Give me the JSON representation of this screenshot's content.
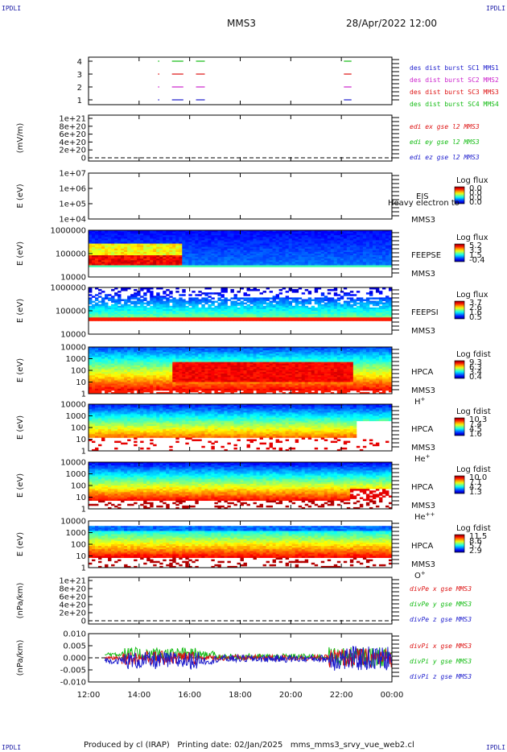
{
  "corner_label": "IPDLI",
  "header": {
    "mission": "MMS3",
    "datetime": "28/Apr/2022 12:00"
  },
  "footer": "Produced by cl (IRAP)   Printing date: 02/Jan/2025   mms_mms3_srvy_vue_web2.cl",
  "time_axis": {
    "ticks": [
      "12:00",
      "14:00",
      "16:00",
      "18:00",
      "20:00",
      "22:00",
      "00:00"
    ],
    "range_hours": [
      12,
      24
    ]
  },
  "chart_data": [
    {
      "type": "timeline",
      "id": "burst",
      "yticks": [
        "4",
        "3",
        "2",
        "1"
      ],
      "legend": [
        {
          "text": "des dist burst SC1 MMS1",
          "color": "#1a1acc"
        },
        {
          "text": "des dist burst SC2 MMS2",
          "color": "#cc22cc"
        },
        {
          "text": "des dist burst SC3 MMS3",
          "color": "#dd1111"
        },
        {
          "text": "des dist burst SC4 MMS4",
          "color": "#11bb11"
        }
      ],
      "intervals": [
        [
          14.75,
          14.8
        ],
        [
          15.3,
          15.75
        ],
        [
          16.25,
          16.6
        ],
        [
          22.1,
          22.4
        ]
      ]
    },
    {
      "type": "line",
      "id": "edi",
      "ylabel": "(mV/m)",
      "yticks": [
        "1e+21",
        "8e+20",
        "6e+20",
        "4e+20",
        "2e+20",
        "0"
      ],
      "legend": [
        {
          "text": "edi ex gse l2 MMS3",
          "color": "#dd1111"
        },
        {
          "text": "edi ey gse l2 MMS3",
          "color": "#11bb11"
        },
        {
          "text": "edi ez gse l2 MMS3",
          "color": "#1a1acc"
        }
      ]
    },
    {
      "type": "heatmap",
      "id": "eis",
      "ylabel": "E (eV)",
      "yticks": [
        "1e+07",
        "1e+06",
        "1e+05",
        "1e+04"
      ],
      "instrument": "EIS",
      "sc": "MMS3",
      "species": "",
      "overlay": "Heavy electron to",
      "cbar_title": "Log flux",
      "cbar_ticks": [
        "0.0",
        "0.0",
        "0.0",
        "0.0"
      ]
    },
    {
      "type": "heatmap",
      "id": "feepse",
      "ylabel": "E (eV)",
      "yticks": [
        "1000000",
        "100000",
        "10000"
      ],
      "instrument": "FEEPSE",
      "sc": "MMS3",
      "species": "",
      "cbar_title": "Log flux",
      "cbar_ticks": [
        "5.2",
        "3.3",
        "1.5",
        "-0.4"
      ]
    },
    {
      "type": "heatmap",
      "id": "feepsi",
      "ylabel": "E (eV)",
      "yticks": [
        "1000000",
        "100000",
        "10000"
      ],
      "instrument": "FEEPSI",
      "sc": "MMS3",
      "species": "",
      "cbar_title": "Log flux",
      "cbar_ticks": [
        "3.7",
        "2.6",
        "1.6",
        "0.5"
      ]
    },
    {
      "type": "heatmap",
      "id": "hpca_h",
      "ylabel": "E (eV)",
      "yticks": [
        "10000",
        "1000",
        "100",
        "10",
        "1"
      ],
      "instrument": "HPCA",
      "sc": "MMS3",
      "species": "H",
      "species_sup": "+",
      "cbar_title": "Log fdist",
      "cbar_ticks": [
        "9.3",
        "6.3",
        "3.4",
        "0.4"
      ]
    },
    {
      "type": "heatmap",
      "id": "hpca_he",
      "ylabel": "E (eV)",
      "yticks": [
        "10000",
        "1000",
        "100",
        "10",
        "1"
      ],
      "instrument": "HPCA",
      "sc": "MMS3",
      "species": "He",
      "species_sup": "+",
      "cbar_title": "Log fdist",
      "cbar_ticks": [
        "10.3",
        "7.4",
        "4.5",
        "1.6"
      ]
    },
    {
      "type": "heatmap",
      "id": "hpca_hepp",
      "ylabel": "E (eV)",
      "yticks": [
        "10000",
        "1000",
        "100",
        "10",
        "1"
      ],
      "instrument": "HPCA",
      "sc": "MMS3",
      "species": "He",
      "species_sup": "++",
      "cbar_title": "Log fdist",
      "cbar_ticks": [
        "10.0",
        "7.1",
        "4.2",
        "1.3"
      ]
    },
    {
      "type": "heatmap",
      "id": "hpca_o",
      "ylabel": "E (eV)",
      "yticks": [
        "10000",
        "1000",
        "100",
        "10",
        "1"
      ],
      "instrument": "HPCA",
      "sc": "MMS3",
      "species": "O",
      "species_sup": "+",
      "cbar_title": "Log fdist",
      "cbar_ticks": [
        "11.5",
        "8.6",
        "5.7",
        "2.9"
      ]
    },
    {
      "type": "line",
      "id": "divpe",
      "ylabel": "(nPa/km)",
      "yticks": [
        "1e+21",
        "8e+20",
        "6e+20",
        "4e+20",
        "2e+20",
        "0"
      ],
      "legend": [
        {
          "text": "divPe x gse MMS3",
          "color": "#dd1111"
        },
        {
          "text": "divPe y gse MMS3",
          "color": "#11bb11"
        },
        {
          "text": "divPe z gse MMS3",
          "color": "#1a1acc"
        }
      ]
    },
    {
      "type": "line",
      "id": "divpi",
      "ylabel": "(nPa/km)",
      "yticks": [
        "0.010",
        "0.005",
        "0.000",
        "-0.005",
        "-0.010"
      ],
      "ylim": [
        -0.01,
        0.01
      ],
      "legend": [
        {
          "text": "divPi x gse MMS3",
          "color": "#dd1111"
        },
        {
          "text": "divPi y gse MMS3",
          "color": "#11bb11"
        },
        {
          "text": "divPi z gse MMS3",
          "color": "#1a1acc"
        }
      ]
    }
  ]
}
